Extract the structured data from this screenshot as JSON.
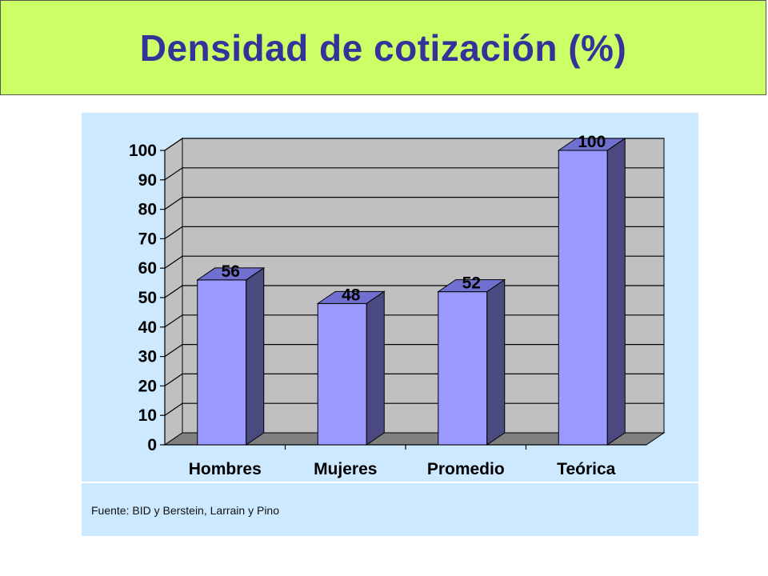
{
  "slide": {
    "title": "Densidad de cotización (%)",
    "source": "Fuente: BID y Berstein, Larrain y Pino"
  },
  "colors": {
    "banner": "#ccff66",
    "title_text": "#333399",
    "chart_background": "#cce9ff",
    "plot_wall": "#c0c0c0",
    "floor": "#808080",
    "bar_front": "#9999ff",
    "bar_top": "#7070d0",
    "bar_side": "#4a4a80"
  },
  "chart_data": {
    "type": "bar",
    "style": "3d-column",
    "categories": [
      "Hombres",
      "Mujeres",
      "Promedio",
      "Teórica"
    ],
    "values": [
      56,
      48,
      52,
      100
    ],
    "data_labels": [
      "56",
      "48",
      "52",
      "100"
    ],
    "title": "",
    "xlabel": "",
    "ylabel": "",
    "ylim": [
      0,
      100
    ],
    "yticks": [
      0,
      10,
      20,
      30,
      40,
      50,
      60,
      70,
      80,
      90,
      100
    ],
    "grid": true,
    "legend": "none"
  }
}
